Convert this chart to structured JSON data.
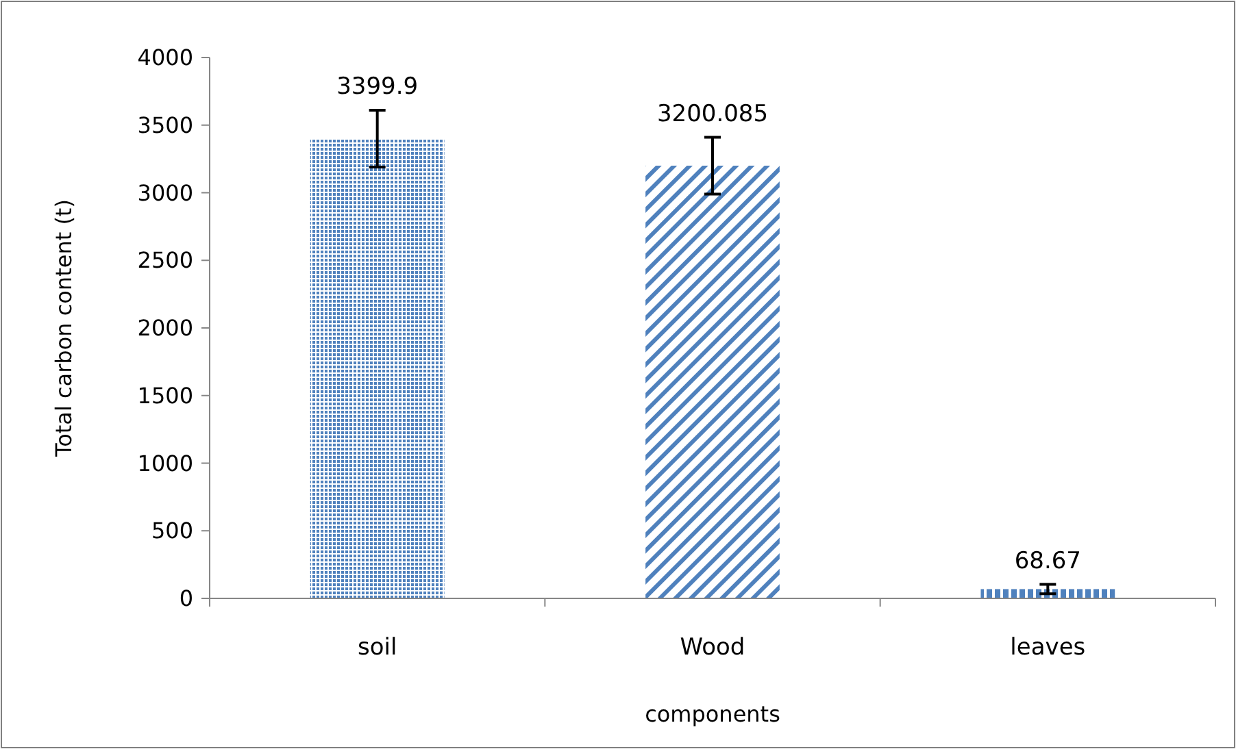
{
  "chart_data": {
    "type": "bar",
    "xlabel": "components",
    "ylabel": "Total carbon content (t)",
    "categories": [
      "soil",
      "Wood",
      "leaves"
    ],
    "values": [
      3399.9,
      3200.085,
      68.67
    ],
    "errors": [
      210,
      210,
      35
    ],
    "colors": [
      "#4f81bd",
      "#4f81bd",
      "#4f81bd"
    ],
    "ylim": [
      0,
      4000
    ],
    "yticks": [
      0,
      500,
      1000,
      1500,
      2000,
      2500,
      3000,
      3500,
      4000
    ],
    "data_labels": true,
    "grid": false
  }
}
